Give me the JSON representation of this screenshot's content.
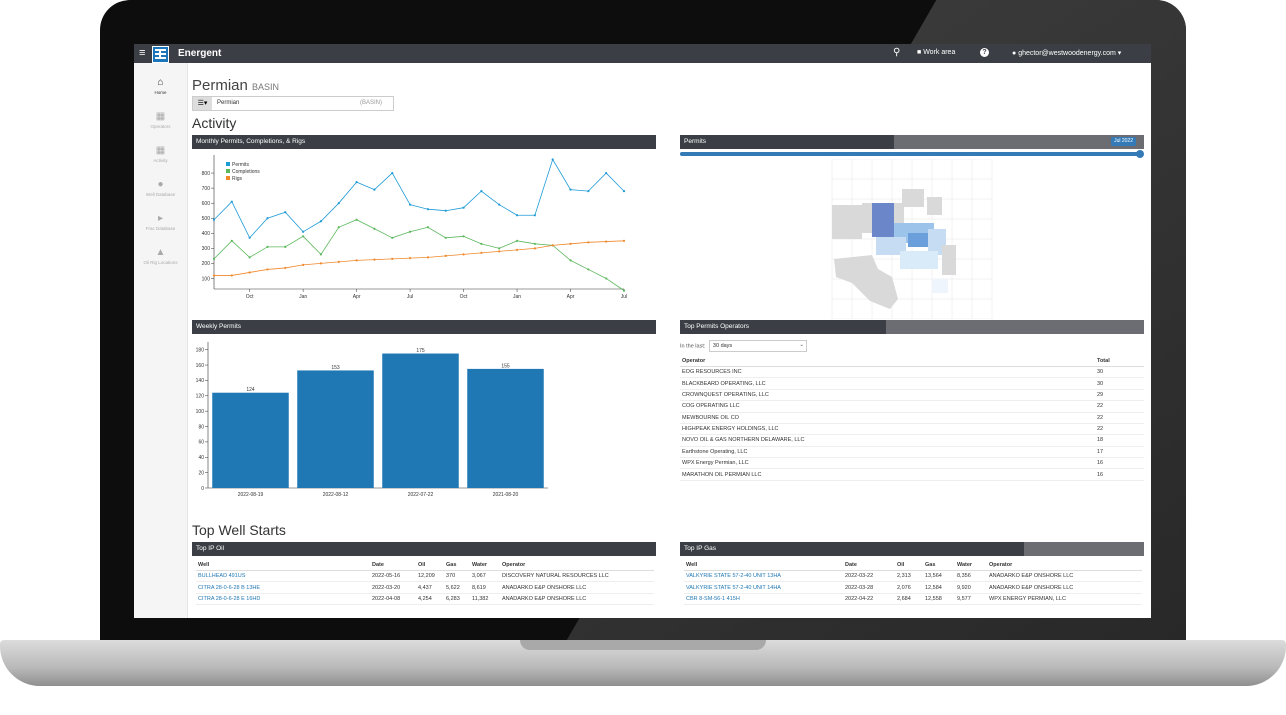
{
  "navbar": {
    "brand": "Energent",
    "work_area": "Work area",
    "help": "?",
    "user": "ghector@westwoodenergy.com"
  },
  "sidebar": {
    "items": [
      {
        "label": "Home",
        "icon": "home-icon"
      },
      {
        "label": "Operators",
        "icon": "building-icon"
      },
      {
        "label": "Activity",
        "icon": "calendar-icon"
      },
      {
        "label": "Well Database",
        "icon": "drop-icon"
      },
      {
        "label": "Frac Database",
        "icon": "frac-icon"
      },
      {
        "label": "Oil Rig Locations",
        "icon": "rig-icon"
      }
    ]
  },
  "page": {
    "title": "Permian",
    "title_suffix": "BASIN",
    "basin_value": "Permian",
    "basin_tag": "(BASIN)"
  },
  "activity": {
    "title": "Activity",
    "monthly_panel_title": "Monthly Permits, Completions, & Rigs",
    "permits_map_title": "Permits",
    "slider_label": "Jul 2022",
    "permits_slider_level": 1.0,
    "weekly_panel_title": "Weekly Permits",
    "top_operators_title": "Top Permits Operators",
    "in_the_last_label": "In the last:",
    "in_the_last_value": "30 days"
  },
  "top_operators": {
    "columns": [
      "Operator",
      "Total"
    ],
    "rows": [
      [
        "EOG RESOURCES INC",
        "30"
      ],
      [
        "BLACKBEARD OPERATING, LLC",
        "30"
      ],
      [
        "CROWNQUEST OPERATING, LLC",
        "29"
      ],
      [
        "COG OPERATING LLC",
        "22"
      ],
      [
        "MEWBOURNE OIL CO",
        "22"
      ],
      [
        "HIGHPEAK ENERGY HOLDINGS, LLC",
        "22"
      ],
      [
        "NOVO OIL & GAS NORTHERN DELAWARE, LLC",
        "18"
      ],
      [
        "Earthstone Operating, LLC",
        "17"
      ],
      [
        "WPX Energy Permian, LLC",
        "16"
      ],
      [
        "MARATHON OIL PERMIAN LLC",
        "16"
      ]
    ]
  },
  "well_starts": {
    "title": "Top Well Starts",
    "oil_panel_title": "Top IP Oil",
    "gas_panel_title": "Top IP Gas",
    "columns": [
      "Well",
      "Date",
      "Oil",
      "Gas",
      "Water",
      "Operator"
    ],
    "oil_rows": [
      [
        "BULLHEAD 491US",
        "2022-05-16",
        "12,209",
        "370",
        "3,067",
        "DISCOVERY NATURAL RESOURCES LLC"
      ],
      [
        "CITRA 28-0-6-28 B 13HE",
        "2022-03-20",
        "4,437",
        "5,622",
        "8,619",
        "ANADARKO E&P ONSHORE LLC"
      ],
      [
        "CITRA 28-0-6-28 E 16HD",
        "2022-04-08",
        "4,254",
        "6,283",
        "11,382",
        "ANADARKO E&P ONSHORE LLC"
      ]
    ],
    "gas_rows": [
      [
        "VALKYRIE STATE 57-2-40 UNIT 13HA",
        "2022-03-22",
        "2,313",
        "13,564",
        "8,356",
        "ANADARKO E&P ONSHORE LLC"
      ],
      [
        "VALKYRIE STATE 57-2-40 UNIT 14HA",
        "2022-03-28",
        "2,076",
        "12,584",
        "9,920",
        "ANADARKO E&P ONSHORE LLC"
      ],
      [
        "CBR 8-SM-56-1 415H",
        "2022-04-22",
        "2,684",
        "12,558",
        "9,577",
        "WPX ENERGY PERMIAN, LLC"
      ]
    ]
  },
  "chart_data": [
    {
      "type": "line",
      "title": "Monthly Permits, Completions, & Rigs",
      "x_tick_labels": [
        "Oct",
        "Jan",
        "Apr",
        "Jul",
        "Oct",
        "Jan",
        "Apr",
        "Jul"
      ],
      "y_ticks": [
        100,
        200,
        300,
        400,
        500,
        600,
        700,
        800
      ],
      "ylim": [
        30,
        920
      ],
      "legend_position": "top-left",
      "colors": {
        "Permits": "#1f9bd7",
        "Completions": "#5cb85c",
        "Rigs": "#f0882a"
      },
      "series": [
        {
          "name": "Permits",
          "values": [
            490,
            610,
            370,
            500,
            540,
            410,
            480,
            600,
            740,
            690,
            800,
            590,
            560,
            550,
            570,
            680,
            590,
            520,
            520,
            890,
            690,
            680,
            800,
            680
          ]
        },
        {
          "name": "Completions",
          "values": [
            230,
            350,
            240,
            310,
            310,
            380,
            260,
            440,
            490,
            430,
            370,
            410,
            440,
            370,
            380,
            330,
            300,
            350,
            330,
            320,
            220,
            160,
            100,
            20
          ]
        },
        {
          "name": "Rigs",
          "values": [
            120,
            120,
            140,
            160,
            170,
            190,
            200,
            210,
            220,
            225,
            230,
            235,
            240,
            250,
            260,
            270,
            280,
            290,
            300,
            320,
            330,
            340,
            345,
            350
          ]
        }
      ]
    },
    {
      "type": "bar",
      "title": "Weekly Permits",
      "categories": [
        "2022-08-19",
        "2022-08-12",
        "2022-07-22",
        "2021-08-20"
      ],
      "values": [
        124,
        153,
        175,
        155
      ],
      "ylim": [
        0,
        190
      ],
      "y_ticks": [
        0,
        20,
        40,
        60,
        80,
        100,
        120,
        140,
        160,
        180
      ],
      "series_name": "total",
      "color": "#1f77b4"
    }
  ]
}
